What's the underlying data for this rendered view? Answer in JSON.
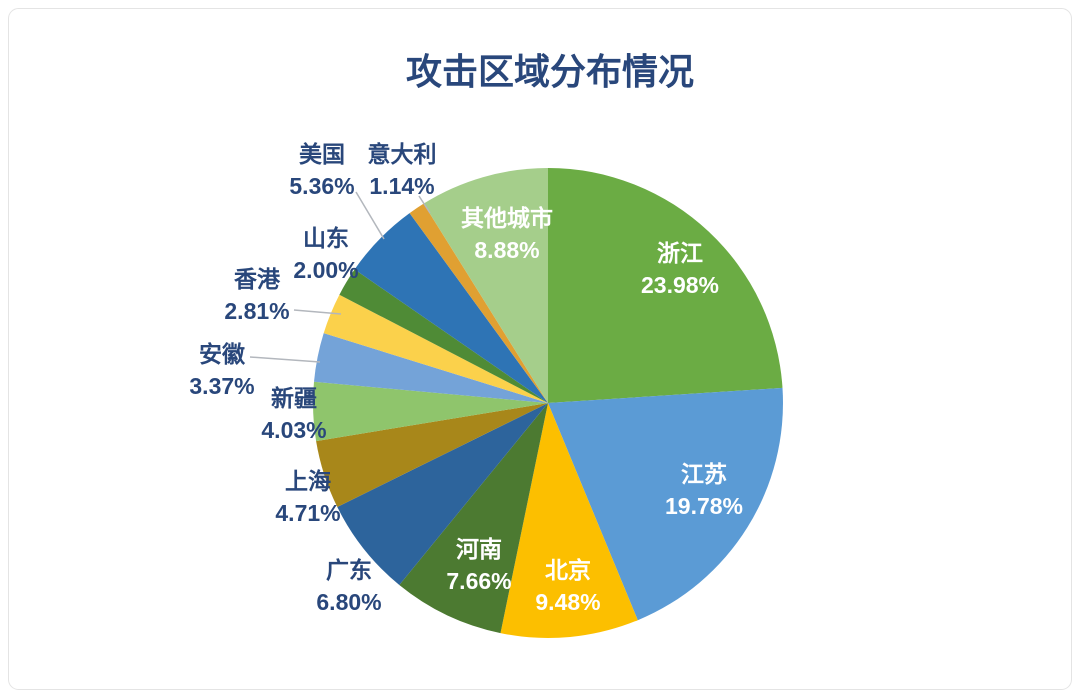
{
  "chart_data": {
    "type": "pie",
    "title": "攻击区域分布情况",
    "legend_position": "none",
    "start_angle_deg": 0,
    "direction": "clockwise",
    "label_format": "category name + percent, large slices labeled inside in white, small slices labeled outside in navy with leader lines",
    "slices": [
      {
        "name": "浙江",
        "value": 23.98,
        "label": "23.98%",
        "color": "#6BAC44",
        "label_position": "inside"
      },
      {
        "name": "江苏",
        "value": 19.78,
        "label": "19.78%",
        "color": "#5B9BD5",
        "label_position": "inside"
      },
      {
        "name": "北京",
        "value": 9.48,
        "label": "9.48%",
        "color": "#FCBF00",
        "label_position": "inside"
      },
      {
        "name": "河南",
        "value": 7.66,
        "label": "7.66%",
        "color": "#4C7A31",
        "label_position": "inside"
      },
      {
        "name": "广东",
        "value": 6.8,
        "label": "6.80%",
        "color": "#2D649C",
        "label_position": "outside"
      },
      {
        "name": "上海",
        "value": 4.71,
        "label": "4.71%",
        "color": "#A8871A",
        "label_position": "outside"
      },
      {
        "name": "新疆",
        "value": 4.03,
        "label": "4.03%",
        "color": "#8FC56C",
        "label_position": "outside"
      },
      {
        "name": "安徽",
        "value": 3.37,
        "label": "3.37%",
        "color": "#74A3D8",
        "label_position": "outside"
      },
      {
        "name": "香港",
        "value": 2.81,
        "label": "2.81%",
        "color": "#FBD14B",
        "label_position": "outside"
      },
      {
        "name": "山东",
        "value": 2.0,
        "label": "2.00%",
        "color": "#4F8B36",
        "label_position": "outside"
      },
      {
        "name": "美国",
        "value": 5.36,
        "label": "5.36%",
        "color": "#2E74B5",
        "label_position": "outside"
      },
      {
        "name": "意大利",
        "value": 1.14,
        "label": "1.14%",
        "color": "#E0A032",
        "label_position": "outside"
      },
      {
        "name": "其他城市",
        "value": 8.88,
        "label": "8.88%",
        "color": "#A5CE8B",
        "label_position": "inside"
      }
    ]
  },
  "styles": {
    "title_color": "#29477B",
    "outside_label_color": "#29477B",
    "inside_label_color": "#FFFFFF",
    "leader_line_color": "#B3B7BD",
    "card_border_color": "#E4E4E4",
    "card_background": "#FFFFFF"
  }
}
